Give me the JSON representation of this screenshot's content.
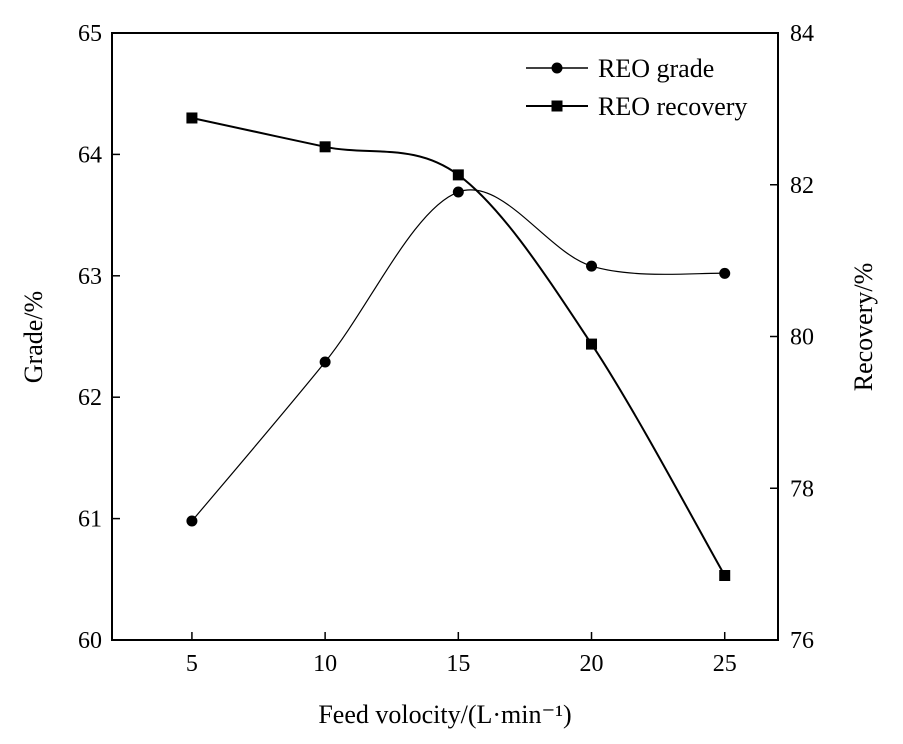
{
  "chart_data": {
    "type": "line",
    "title": "",
    "x": [
      5,
      10,
      15,
      20,
      25
    ],
    "xlabel": "Feed volocity/(L·min⁻¹)",
    "xlim": [
      2,
      27
    ],
    "xticks": [
      5,
      10,
      15,
      20,
      25
    ],
    "y_left": {
      "label": "Grade/%",
      "lim": [
        60,
        65
      ],
      "ticks": [
        60,
        61,
        62,
        63,
        64,
        65
      ]
    },
    "y_right": {
      "label": "Recovery/%",
      "lim": [
        76,
        84
      ],
      "ticks": [
        76,
        78,
        80,
        82,
        84
      ]
    },
    "series": [
      {
        "name": "REO grade",
        "axis": "left",
        "marker": "circle",
        "curve": "smooth",
        "stroke_width": 1.2,
        "values": [
          60.98,
          62.29,
          63.69,
          63.08,
          63.02
        ]
      },
      {
        "name": "REO recovery",
        "axis": "right",
        "marker": "square",
        "curve": "smooth",
        "stroke_width": 2,
        "values": [
          82.88,
          82.5,
          82.13,
          79.9,
          76.85
        ]
      }
    ],
    "legend": {
      "position": "top-right"
    },
    "grid": false
  }
}
